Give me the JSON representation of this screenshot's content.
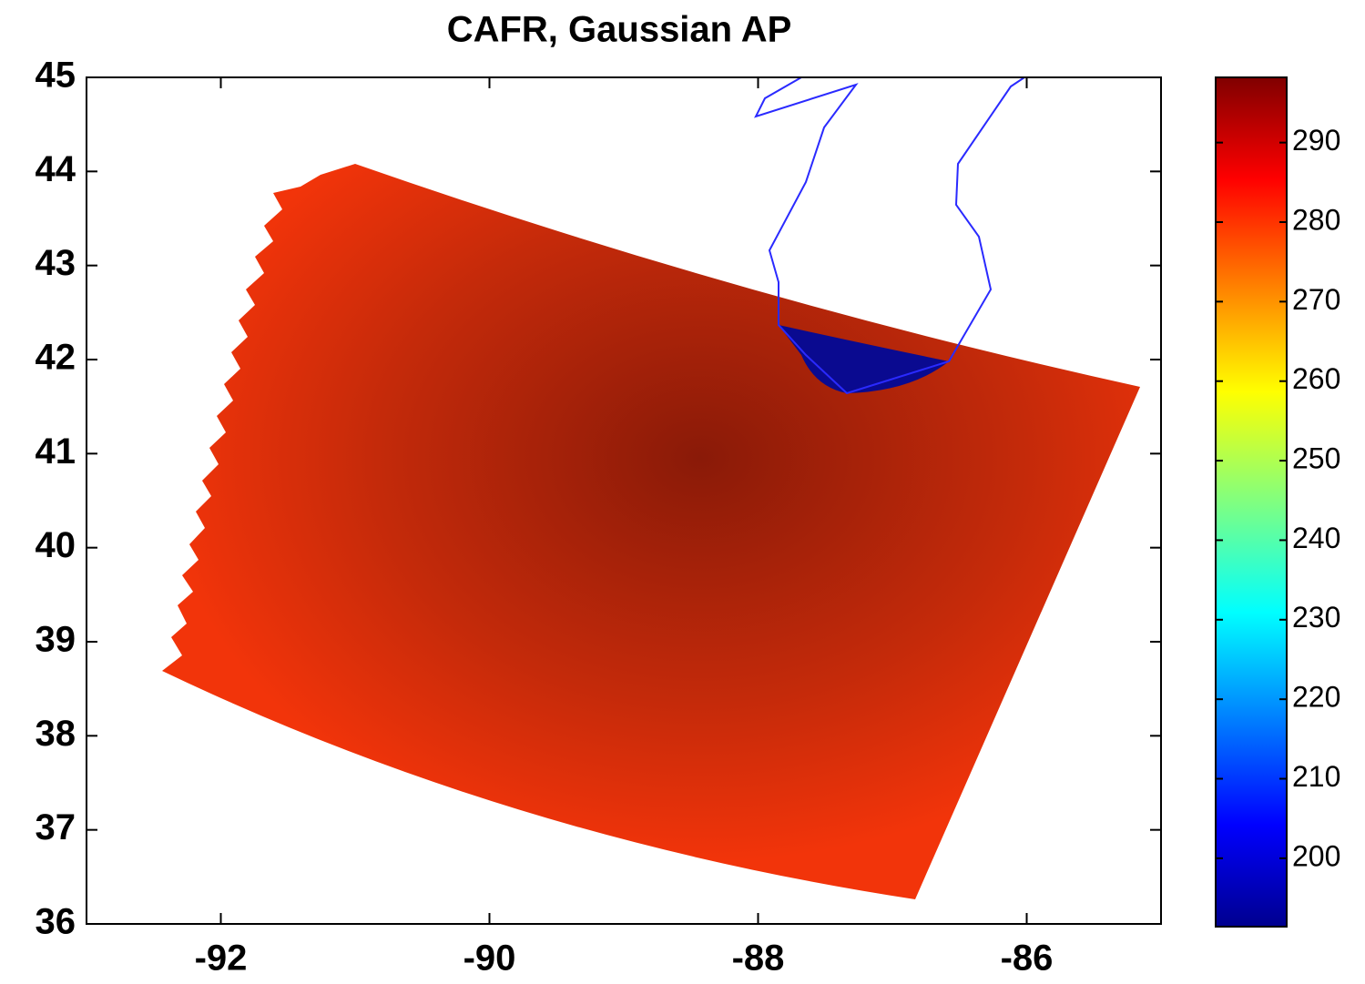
{
  "chart_data": {
    "type": "heatmap",
    "title": "CAFR, Gaussian AP",
    "xlim": [
      -93,
      -85
    ],
    "xticks": [
      -92,
      -90,
      -88,
      -86
    ],
    "ylim": [
      36,
      45
    ],
    "yticks": [
      36,
      37,
      38,
      39,
      40,
      41,
      42,
      43,
      44,
      45
    ],
    "colorbar": {
      "lim": [
        191.4,
        298.2
      ],
      "ticks": [
        200,
        210,
        220,
        230,
        240,
        250,
        260,
        270,
        280,
        290
      ],
      "colormap": "jet"
    }
  }
}
